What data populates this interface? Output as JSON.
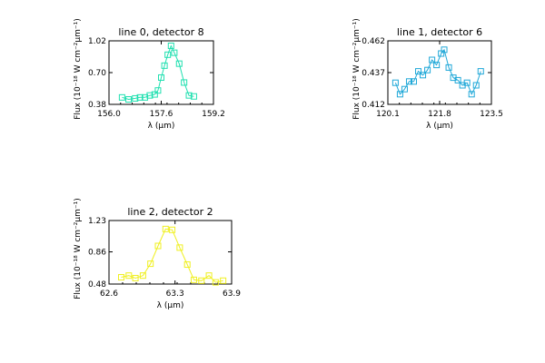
{
  "chart_data": [
    {
      "type": "line",
      "title": "line 0, detector 8",
      "xlabel": "λ (μm)",
      "ylabel": "Flux (10⁻¹⁸ W cm⁻²μm⁻¹)",
      "xlim": [
        156.0,
        159.2
      ],
      "ylim": [
        0.38,
        1.02
      ],
      "xticks": [
        "156.0",
        "157.6",
        "159.2"
      ],
      "yticks": [
        "0.38",
        "0.70",
        "1.02"
      ],
      "grid": false,
      "color": "#20e0b0",
      "marker": "square",
      "x": [
        156.4,
        156.6,
        156.8,
        156.95,
        157.1,
        157.25,
        157.4,
        157.5,
        157.6,
        157.7,
        157.8,
        157.9,
        158.0,
        158.15,
        158.3,
        158.45,
        158.6
      ],
      "y": [
        0.45,
        0.43,
        0.44,
        0.45,
        0.45,
        0.47,
        0.48,
        0.52,
        0.65,
        0.77,
        0.88,
        0.97,
        0.9,
        0.79,
        0.6,
        0.47,
        0.46
      ]
    },
    {
      "type": "line",
      "title": "line 1, detector 6",
      "xlabel": "λ (μm)",
      "ylabel": "Flux (10⁻¹⁸ W cm⁻²μm⁻¹)",
      "xlim": [
        120.1,
        123.5
      ],
      "ylim": [
        0.412,
        0.462
      ],
      "xticks": [
        "120.1",
        "121.8",
        "123.5"
      ],
      "yticks": [
        "0.412",
        "0.437",
        "0.462"
      ],
      "grid": false,
      "color": "#20a8d8",
      "marker": "square",
      "x": [
        120.35,
        120.5,
        120.65,
        120.8,
        120.95,
        121.1,
        121.25,
        121.4,
        121.55,
        121.7,
        121.85,
        121.95,
        122.1,
        122.25,
        122.4,
        122.55,
        122.7,
        122.85,
        123.0,
        123.15
      ],
      "y": [
        0.429,
        0.42,
        0.424,
        0.43,
        0.43,
        0.438,
        0.435,
        0.439,
        0.447,
        0.443,
        0.452,
        0.455,
        0.441,
        0.433,
        0.431,
        0.427,
        0.429,
        0.42,
        0.427,
        0.438
      ]
    },
    {
      "type": "line",
      "title": "line 2, detector 2",
      "xlabel": "λ (μm)",
      "ylabel": "Flux (10⁻¹⁸ W cm⁻²μm⁻¹)",
      "xlim": [
        62.6,
        63.9
      ],
      "ylim": [
        0.48,
        1.23
      ],
      "xticks": [
        "62.6",
        "63.3",
        "63.9"
      ],
      "yticks": [
        "0.48",
        "0.86",
        "1.23"
      ],
      "grid": false,
      "color": "#f0f020",
      "marker": "square",
      "x": [
        62.73,
        62.81,
        62.88,
        62.96,
        63.04,
        63.12,
        63.2,
        63.27,
        63.35,
        63.43,
        63.5,
        63.58,
        63.66,
        63.73,
        63.81
      ],
      "y": [
        0.56,
        0.58,
        0.55,
        0.58,
        0.72,
        0.93,
        1.13,
        1.12,
        0.91,
        0.71,
        0.53,
        0.52,
        0.58,
        0.5,
        0.52
      ]
    }
  ]
}
